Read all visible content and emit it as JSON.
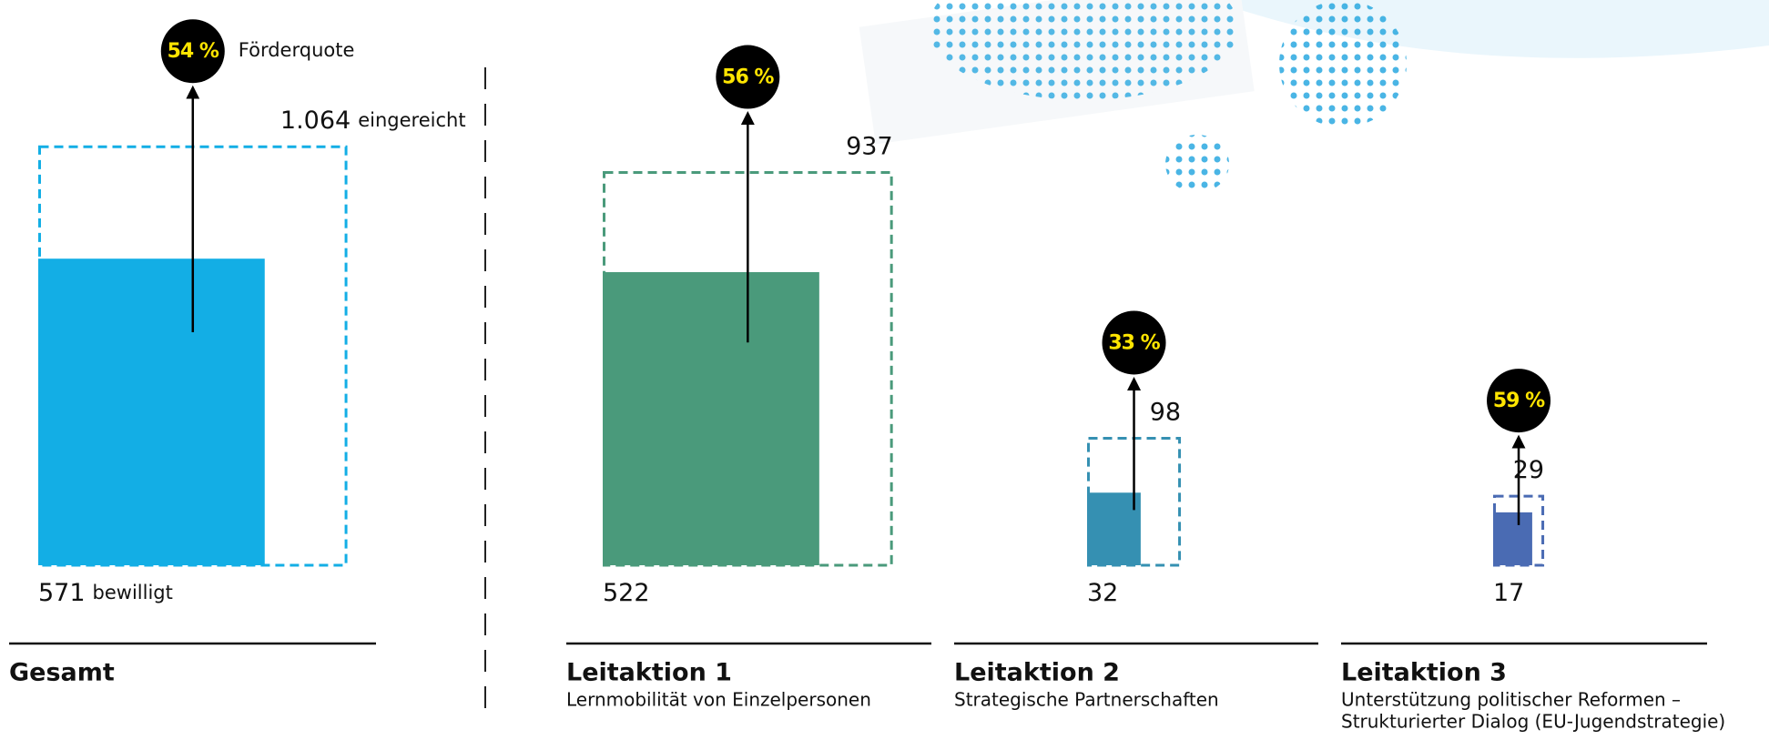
{
  "chart_data": {
    "type": "area-proportional-bar",
    "categories": [
      "Gesamt",
      "Leitaktion 1",
      "Leitaktion 2",
      "Leitaktion 3"
    ],
    "subtitles": [
      [],
      [
        "Lernmobilität von Einzelpersonen"
      ],
      [
        "Strategische Partnerschaften"
      ],
      [
        "Unterstützung politischer Reformen –",
        "Strukturierter Dialog (EU-Jugendstrategie)"
      ]
    ],
    "colors": [
      "#13aee5",
      "#4a9a7b",
      "#3590b2",
      "#4a6bb3"
    ],
    "series": [
      {
        "name": "eingereicht",
        "values": [
          1064,
          937,
          98,
          29
        ],
        "value_labels": [
          "1.064",
          "937",
          "98",
          "29"
        ]
      },
      {
        "name": "bewilligt",
        "values": [
          571,
          522,
          32,
          17
        ]
      },
      {
        "name": "Förderquote",
        "values": [
          54,
          56,
          33,
          59
        ],
        "value_labels": [
          "54 %",
          "56 %",
          "33 %",
          "59 %"
        ]
      }
    ]
  }
}
